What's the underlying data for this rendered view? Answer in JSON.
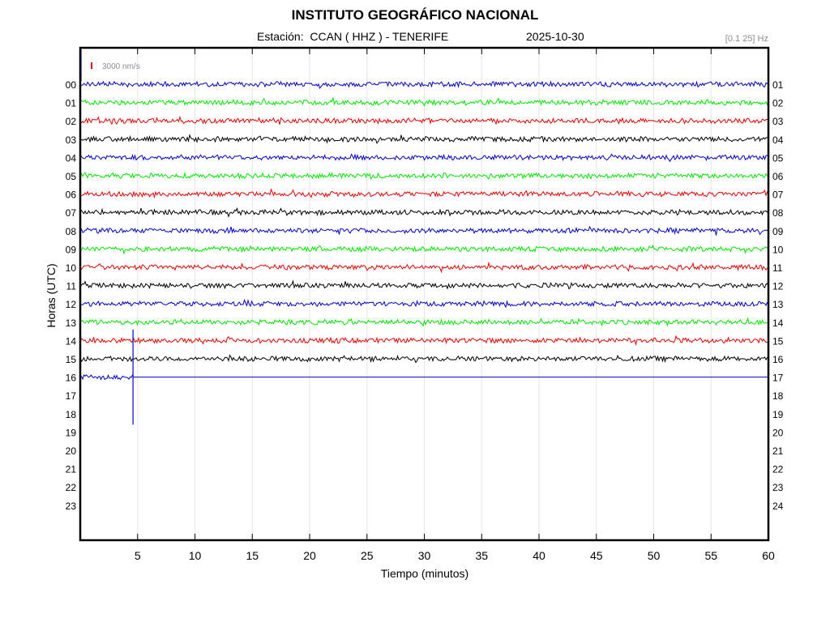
{
  "header": {
    "title": "INSTITUTO GEOGRÁFICO NACIONAL",
    "station_line": "Estación:  CCAN ( HHZ ) - TENERIFE",
    "date": "2025-10-30",
    "filter": "[0.1 25] Hz"
  },
  "chart_data": {
    "type": "line",
    "title": "INSTITUTO GEOGRÁFICO NACIONAL",
    "xlabel": "Tiempo (minutos)",
    "ylabel": "Horas (UTC)",
    "xlim": [
      0,
      60
    ],
    "x_ticks": [
      "5",
      "10",
      "15",
      "20",
      "25",
      "30",
      "35",
      "40",
      "45",
      "50",
      "55",
      "60"
    ],
    "y_ticks_left": [
      "00",
      "01",
      "02",
      "03",
      "04",
      "05",
      "06",
      "07",
      "08",
      "09",
      "10",
      "11",
      "12",
      "13",
      "14",
      "15",
      "16",
      "17",
      "18",
      "19",
      "20",
      "21",
      "22",
      "23"
    ],
    "y_ticks_right": [
      "01",
      "02",
      "03",
      "04",
      "05",
      "06",
      "07",
      "08",
      "09",
      "10",
      "11",
      "12",
      "13",
      "14",
      "15",
      "16",
      "17",
      "18",
      "19",
      "20",
      "21",
      "22",
      "23",
      "24"
    ],
    "scale_label": "3000 nm/s",
    "grid": true,
    "series_colors": [
      "#0000cc",
      "#00e600",
      "#e60000",
      "#000000"
    ],
    "trace_hours": [
      0,
      1,
      2,
      3,
      4,
      5,
      6,
      7,
      8,
      9,
      10,
      11,
      12,
      13,
      14,
      15,
      16
    ],
    "last_trace_end_minute": 4.6,
    "flat_line_after_minute": 4.6,
    "event": {
      "hour": 16,
      "minute": 4.6,
      "down_extent_hours": 2.6,
      "up_extent_hours": 2.6
    }
  }
}
